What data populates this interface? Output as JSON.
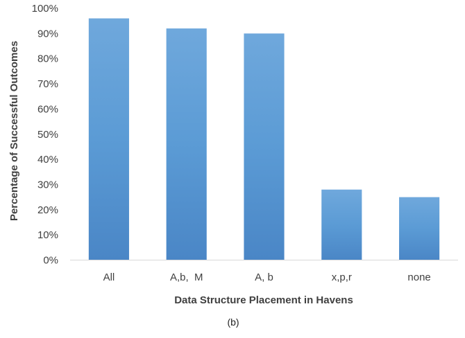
{
  "chart_data": {
    "type": "bar",
    "categories": [
      "All",
      "A,b,  M",
      "A, b",
      "x,p,r",
      "none"
    ],
    "values": [
      96,
      92,
      90,
      28,
      25
    ],
    "ylim": [
      0,
      100
    ],
    "yticks": [
      0,
      10,
      20,
      30,
      40,
      50,
      60,
      70,
      80,
      90,
      100
    ],
    "ytick_labels": [
      "0%",
      "10%",
      "20%",
      "30%",
      "40%",
      "50%",
      "60%",
      "70%",
      "80%",
      "90%",
      "100%"
    ],
    "xlabel": "Data Structure Placement in Havens",
    "ylabel": "Percentage of Successful Outcomes",
    "caption": "(b)",
    "grid": false,
    "legend": "none",
    "bar_color_top": "#6fa8dc",
    "bar_color_mid": "#5b9bd5",
    "bar_color_bottom": "#4a86c6",
    "axis_color": "#d9d9d9"
  }
}
